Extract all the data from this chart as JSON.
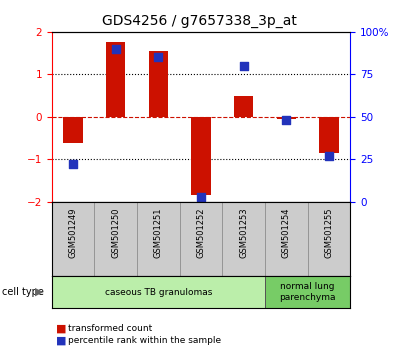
{
  "title": "GDS4256 / g7657338_3p_at",
  "samples": [
    "GSM501249",
    "GSM501250",
    "GSM501251",
    "GSM501252",
    "GSM501253",
    "GSM501254",
    "GSM501255"
  ],
  "transformed_count": [
    -0.62,
    1.75,
    1.55,
    -1.85,
    0.48,
    -0.05,
    -0.85
  ],
  "percentile_rank": [
    22,
    90,
    85,
    3,
    80,
    48,
    27
  ],
  "ylim_left": [
    -2,
    2
  ],
  "ylim_right": [
    0,
    100
  ],
  "yticks_left": [
    -2,
    -1,
    0,
    1,
    2
  ],
  "yticks_right": [
    0,
    25,
    50,
    75,
    100
  ],
  "ytick_labels_right": [
    "0",
    "25",
    "50",
    "75",
    "100%"
  ],
  "bar_color": "#cc1100",
  "dot_color": "#2233bb",
  "bar_width": 0.45,
  "dot_size": 40,
  "group_ranges": [
    {
      "start": 0,
      "end": 4,
      "label": "caseous TB granulomas",
      "color": "#bbeeaa"
    },
    {
      "start": 5,
      "end": 6,
      "label": "normal lung\nparenchyma",
      "color": "#77cc66"
    }
  ],
  "legend_items": [
    {
      "label": "transformed count",
      "color": "#cc1100"
    },
    {
      "label": "percentile rank within the sample",
      "color": "#2233bb"
    }
  ],
  "label_box_color": "#cccccc",
  "label_box_edge": "#888888"
}
